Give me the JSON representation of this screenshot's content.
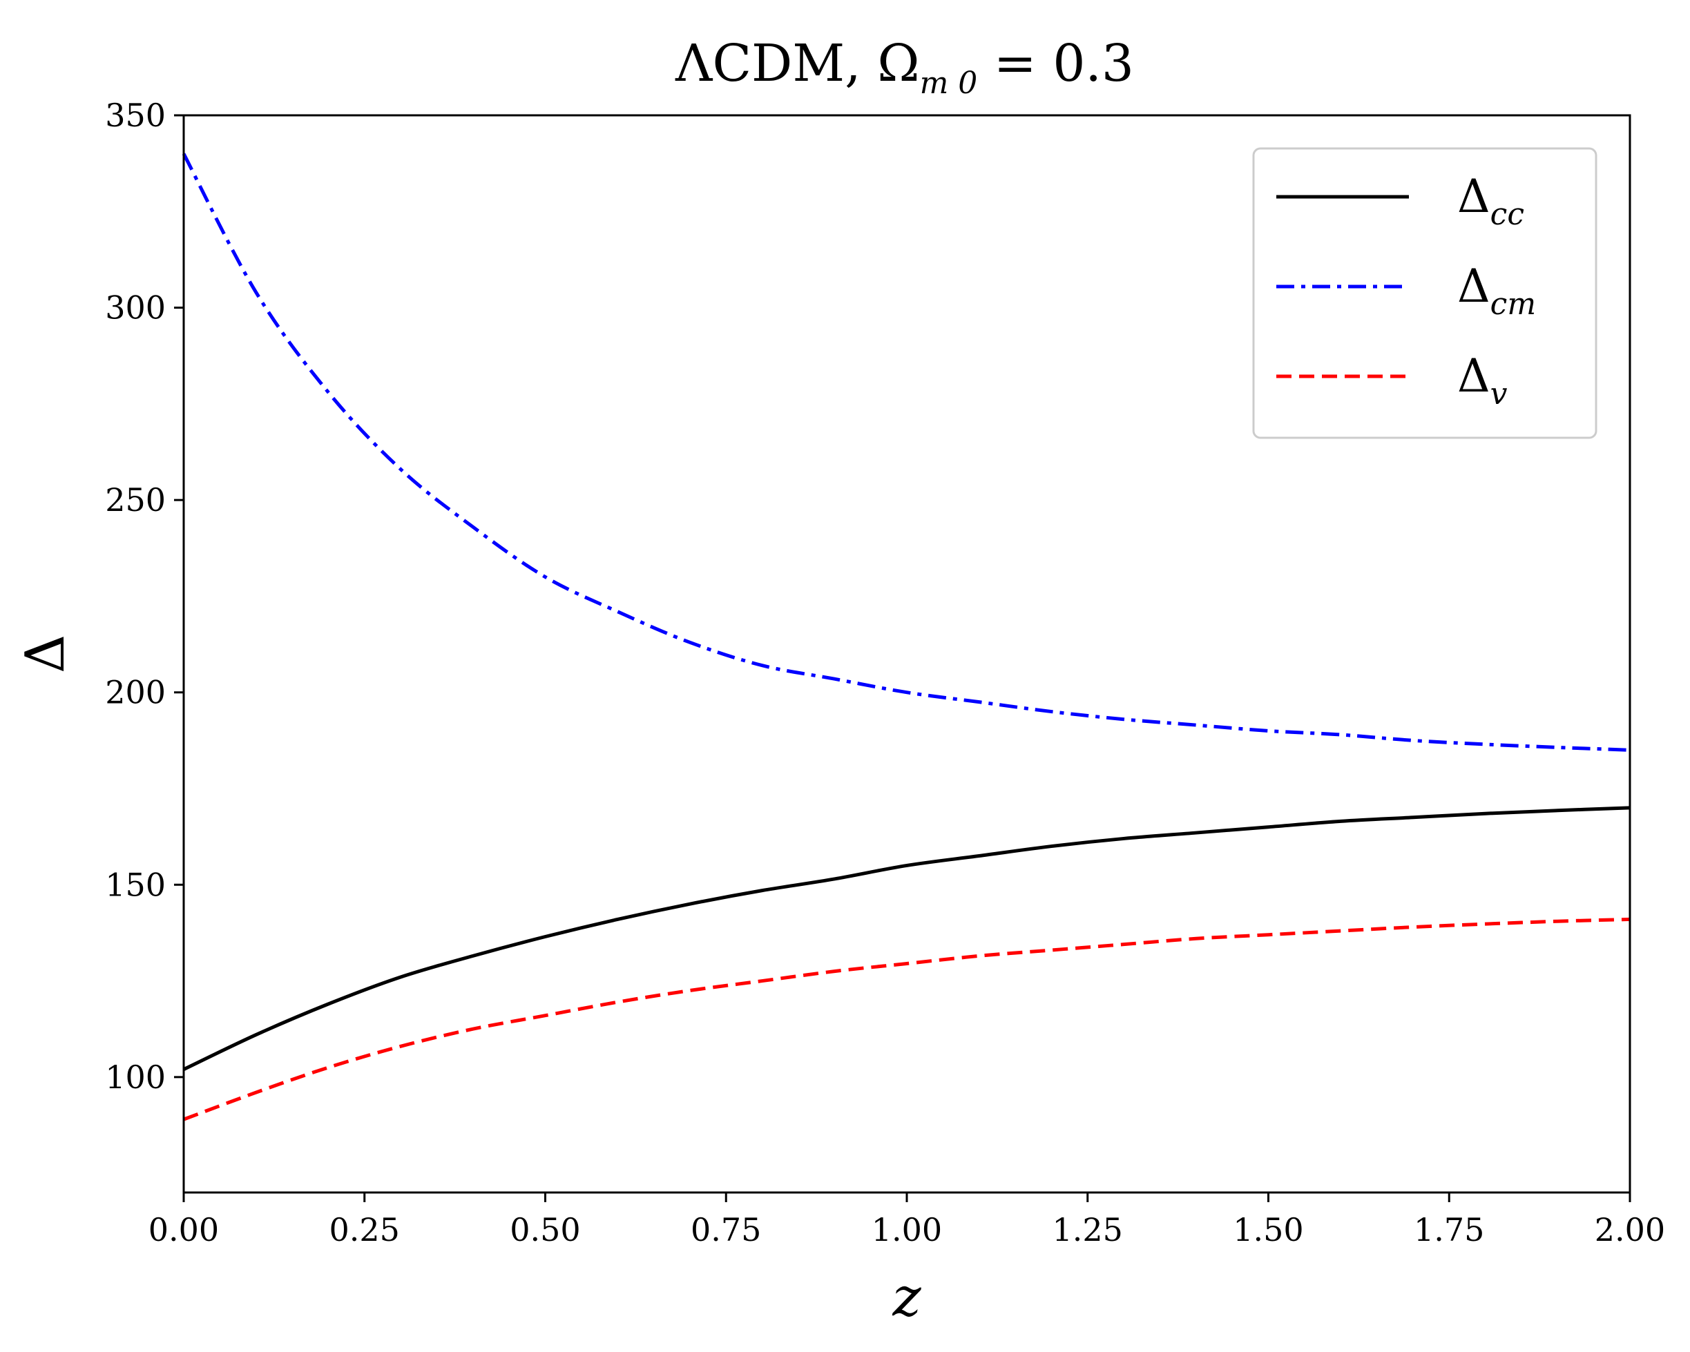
{
  "chart_data": {
    "type": "line",
    "title": "ΛCDM, Ω",
    "title_sub": "m 0",
    "title_tail": " = 0.3",
    "xlabel": "z",
    "ylabel": "Δ",
    "xlim": [
      0.0,
      2.0
    ],
    "ylim": [
      70,
      350
    ],
    "xticks": [
      "0.00",
      "0.25",
      "0.50",
      "0.75",
      "1.00",
      "1.25",
      "1.50",
      "1.75",
      "2.00"
    ],
    "xtick_values": [
      0.0,
      0.25,
      0.5,
      0.75,
      1.0,
      1.25,
      1.5,
      1.75,
      2.0
    ],
    "yticks": [
      "100",
      "150",
      "200",
      "250",
      "300",
      "350"
    ],
    "ytick_values": [
      100,
      150,
      200,
      250,
      300,
      350
    ],
    "grid": false,
    "legend_position": "top-right",
    "x": [
      0.0,
      0.1,
      0.2,
      0.3,
      0.4,
      0.5,
      0.6,
      0.7,
      0.8,
      0.9,
      1.0,
      1.1,
      1.2,
      1.3,
      1.4,
      1.5,
      1.6,
      1.7,
      1.8,
      1.9,
      2.0
    ],
    "series": [
      {
        "name": "Δ",
        "sub": "cc",
        "color": "#000000",
        "style": "solid",
        "values": [
          102,
          111,
          119,
          126,
          131.5,
          136.5,
          141,
          145,
          148.5,
          151.5,
          155,
          157.5,
          160,
          162,
          163.5,
          165,
          166.5,
          167.5,
          168.5,
          169.3,
          170
        ]
      },
      {
        "name": "Δ",
        "sub": "cm",
        "color": "#0000ff",
        "style": "dashdot",
        "values": [
          340,
          304,
          278,
          258,
          243,
          230,
          221,
          213,
          207,
          203.5,
          200,
          197.5,
          195,
          193,
          191.5,
          190,
          189,
          187.5,
          186.5,
          185.7,
          185
        ]
      },
      {
        "name": "Δ",
        "sub": "v",
        "color": "#ff0000",
        "style": "dashed",
        "values": [
          89,
          96,
          102.5,
          108,
          112.5,
          116,
          119.5,
          122.5,
          125,
          127.5,
          129.5,
          131.5,
          133,
          134.5,
          136,
          137,
          138,
          139,
          139.8,
          140.5,
          141
        ]
      }
    ]
  }
}
